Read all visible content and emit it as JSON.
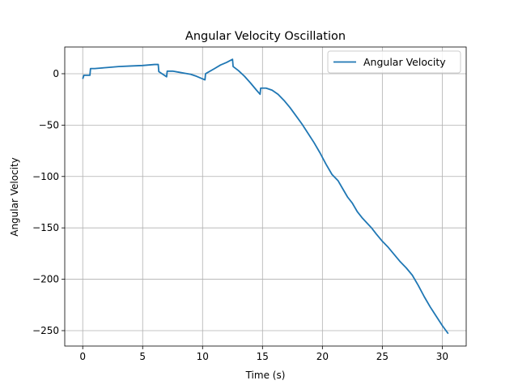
{
  "chart_data": {
    "type": "line",
    "title": "Angular Velocity Oscillation",
    "xlabel": "Time (s)",
    "ylabel": "Angular Velocity",
    "xlim": [
      -1.5,
      32
    ],
    "ylim": [
      -265,
      26
    ],
    "xticks": [
      0,
      5,
      10,
      15,
      20,
      25,
      30
    ],
    "yticks": [
      0,
      -50,
      -100,
      -150,
      -200,
      -250
    ],
    "xtick_labels": [
      "0",
      "5",
      "10",
      "15",
      "20",
      "25",
      "30"
    ],
    "ytick_labels": [
      "0",
      "−50",
      "−100",
      "−150",
      "−200",
      "−250"
    ],
    "grid": true,
    "legend_position": "top-right",
    "color": "#1f77b4",
    "series": [
      {
        "name": "Angular Velocity",
        "x": [
          0,
          0.1,
          0.6,
          0.65,
          1.0,
          1.5,
          2.0,
          3.0,
          4.0,
          5.0,
          5.5,
          6.0,
          6.3,
          6.35,
          7.0,
          7.05,
          7.5,
          8.0,
          8.5,
          9.0,
          9.5,
          10.0,
          10.2,
          10.25,
          11.0,
          11.5,
          12.0,
          12.5,
          12.55,
          13.0,
          13.5,
          14.0,
          14.5,
          14.8,
          14.85,
          15.3,
          15.8,
          16.3,
          16.8,
          17.3,
          17.8,
          18.3,
          18.8,
          19.3,
          19.8,
          20.3,
          20.8,
          21.3,
          21.7,
          22.1,
          22.5,
          22.9,
          23.3,
          23.7,
          24.1,
          24.5,
          25.0,
          25.5,
          26.0,
          26.5,
          27.0,
          27.5,
          28.0,
          28.5,
          29.0,
          29.5,
          30.0,
          30.5
        ],
        "values": [
          -5,
          -1.5,
          -1.5,
          5,
          5,
          5.5,
          6,
          7,
          7.5,
          8,
          8.5,
          9,
          9,
          2,
          -3,
          2.5,
          2.5,
          1.5,
          0.5,
          -0.5,
          -2.5,
          -5,
          -6,
          0,
          5,
          8.5,
          11,
          14,
          7,
          3,
          -2.5,
          -9,
          -16,
          -20,
          -14,
          -14,
          -16,
          -20,
          -26,
          -33,
          -41,
          -49,
          -58,
          -67,
          -77,
          -88,
          -98,
          -104,
          -112,
          -120,
          -126,
          -134,
          -140,
          -145,
          -150,
          -156,
          -163,
          -169,
          -176,
          -183,
          -189,
          -196,
          -206,
          -217,
          -227,
          -236,
          -245,
          -253
        ]
      }
    ]
  }
}
